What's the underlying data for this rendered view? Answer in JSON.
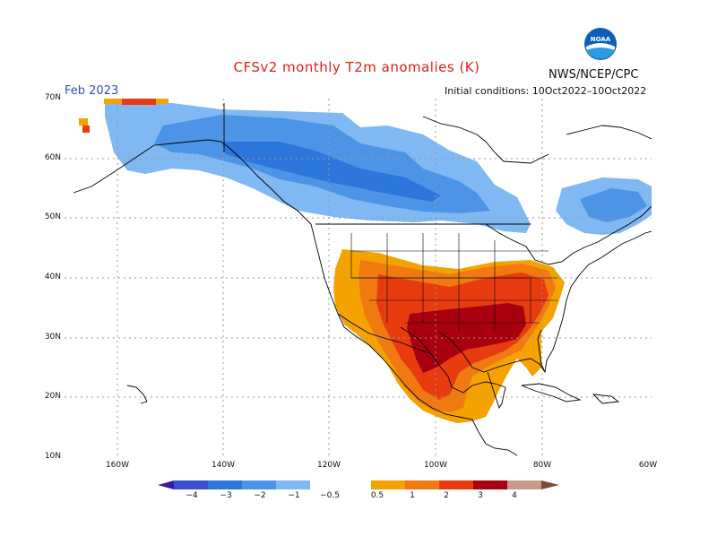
{
  "header": {
    "title": "CFSv2 monthly T2m anomalies (K)",
    "agency": "NWS/NCEP/CPC",
    "logo_text": "NOAA",
    "month": "Feb 2023",
    "initial_conditions": "Initial conditions: 10Oct2022–10Oct2022"
  },
  "axes": {
    "lat_labels": [
      "70N",
      "60N",
      "50N",
      "40N",
      "30N",
      "20N",
      "10N"
    ],
    "lon_labels": [
      "160W",
      "140W",
      "120W",
      "100W",
      "80W",
      "60W"
    ]
  },
  "colorbar": {
    "tick_labels": [
      "−4",
      "−3",
      "−2",
      "−1",
      "−0.5",
      "0.5",
      "1",
      "2",
      "3",
      "4"
    ],
    "colors": [
      "#3a1aa0",
      "#3b4fd1",
      "#2c76dc",
      "#4c95e6",
      "#7fb8f2",
      "#ffffff",
      "#f4a200",
      "#f07a10",
      "#e83c10",
      "#a8000e",
      "#c89a8c",
      "#7a4a3a"
    ]
  },
  "legend_colors": {
    "cold_light": "#7fb8f2",
    "cold_mid": "#4c95e6",
    "cold_strong": "#2c76dc",
    "warm_light": "#f4a200",
    "warm_mid": "#f07a10",
    "warm_strong": "#e83c10",
    "warm_extreme": "#a8000e"
  }
}
